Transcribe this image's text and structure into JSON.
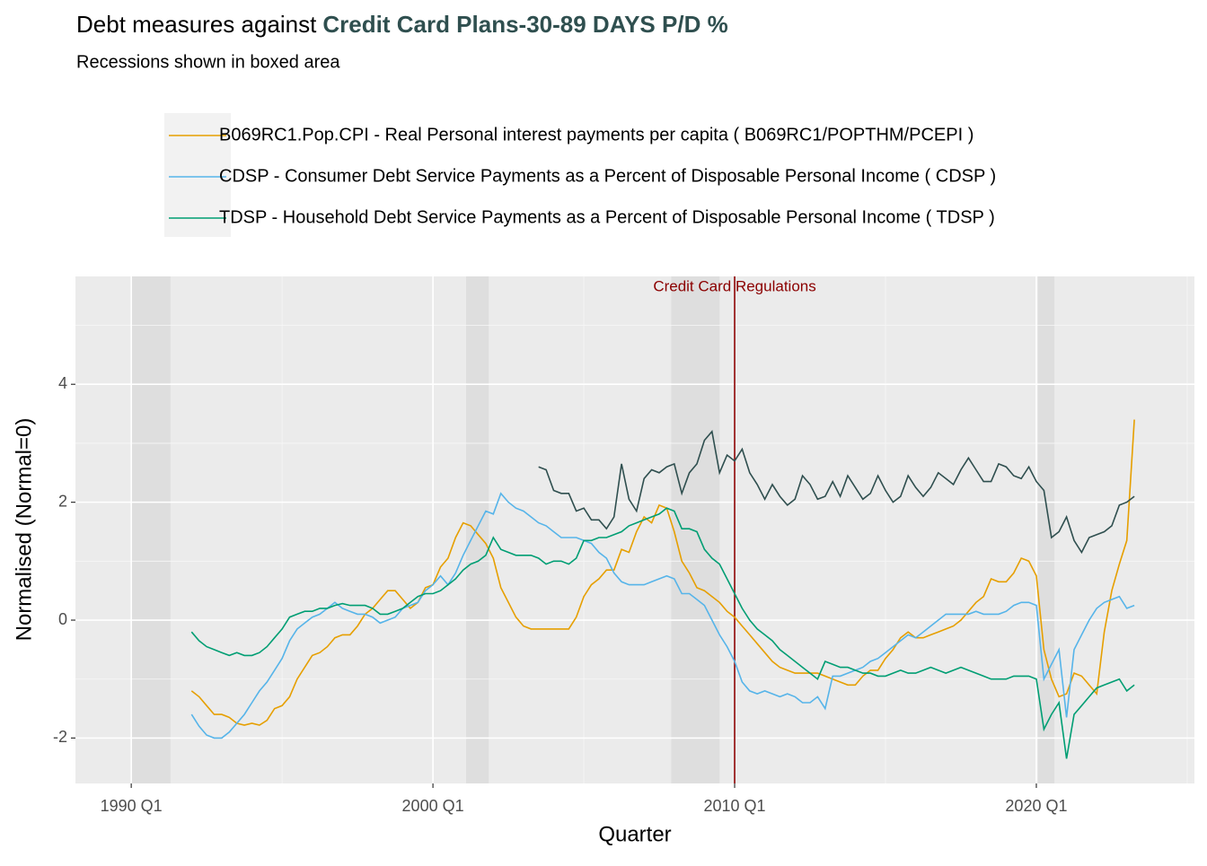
{
  "chart_data": {
    "type": "line",
    "title": "Debt measures against",
    "title_highlight": "Credit Card Plans-30-89 DAYS P/D %",
    "title_highlight_color": "#2F4F4F",
    "subtitle": "Recessions shown in boxed area",
    "xlabel": "Quarter",
    "ylabel": "Normalised (Normal=0)",
    "xlim": [
      1988.15,
      2025.24
    ],
    "ylim": [
      -2.77,
      5.83
    ],
    "xticks": [
      {
        "value": 1990,
        "label": "1990 Q1"
      },
      {
        "value": 2000,
        "label": "2000 Q1"
      },
      {
        "value": 2010,
        "label": "2010 Q1"
      },
      {
        "value": 2020,
        "label": "2020 Q1"
      }
    ],
    "yticks": [
      -2,
      0,
      2,
      4
    ],
    "x_minor": [
      1995,
      2005,
      2015,
      2025
    ],
    "y_minor": [
      -1,
      1,
      3,
      5
    ],
    "grid": true,
    "recessions": [
      [
        1990.0,
        1991.3
      ],
      [
        2001.1,
        2001.85
      ],
      [
        2007.9,
        2009.5
      ],
      [
        2020.05,
        2020.6
      ]
    ],
    "vline": 2010,
    "vline_label": "Credit Card Regulations",
    "vline_color": "#8B0000",
    "x": [
      1992,
      1992.25,
      1992.5,
      1992.75,
      1993,
      1993.25,
      1993.5,
      1993.75,
      1994,
      1994.25,
      1994.5,
      1994.75,
      1995,
      1995.25,
      1995.5,
      1995.75,
      1996,
      1996.25,
      1996.5,
      1996.75,
      1997,
      1997.25,
      1997.5,
      1997.75,
      1998,
      1998.25,
      1998.5,
      1998.75,
      1999,
      1999.25,
      1999.5,
      1999.75,
      2000,
      2000.25,
      2000.5,
      2000.75,
      2001,
      2001.25,
      2001.5,
      2001.75,
      2002,
      2002.25,
      2002.5,
      2002.75,
      2003,
      2003.25,
      2003.5,
      2003.75,
      2004,
      2004.25,
      2004.5,
      2004.75,
      2005,
      2005.25,
      2005.5,
      2005.75,
      2006,
      2006.25,
      2006.5,
      2006.75,
      2007,
      2007.25,
      2007.5,
      2007.75,
      2008,
      2008.25,
      2008.5,
      2008.75,
      2009,
      2009.25,
      2009.5,
      2009.75,
      2010,
      2010.25,
      2010.5,
      2010.75,
      2011,
      2011.25,
      2011.5,
      2011.75,
      2012,
      2012.25,
      2012.5,
      2012.75,
      2013,
      2013.25,
      2013.5,
      2013.75,
      2014,
      2014.25,
      2014.5,
      2014.75,
      2015,
      2015.25,
      2015.5,
      2015.75,
      2016,
      2016.25,
      2016.5,
      2016.75,
      2017,
      2017.25,
      2017.5,
      2017.75,
      2018,
      2018.25,
      2018.5,
      2018.75,
      2019,
      2019.25,
      2019.5,
      2019.75,
      2020,
      2020.25,
      2020.5,
      2020.75,
      2021,
      2021.25,
      2021.5,
      2021.75,
      2022,
      2022.25,
      2022.5,
      2022.75,
      2023,
      2023.25
    ],
    "series": [
      {
        "name": "B069RC1.Pop.CPI - Real Personal interest payments per capita ( B069RC1/POPTHM/PCEPI )",
        "color": "#E69F00",
        "values": [
          -1.2,
          -1.3,
          -1.45,
          -1.6,
          -1.6,
          -1.65,
          -1.75,
          -1.78,
          -1.75,
          -1.78,
          -1.7,
          -1.5,
          -1.45,
          -1.3,
          -1.0,
          -0.8,
          -0.6,
          -0.55,
          -0.45,
          -0.3,
          -0.25,
          -0.25,
          -0.1,
          0.1,
          0.2,
          0.35,
          0.5,
          0.5,
          0.35,
          0.2,
          0.3,
          0.55,
          0.6,
          0.9,
          1.05,
          1.4,
          1.65,
          1.6,
          1.45,
          1.3,
          1.05,
          0.55,
          0.3,
          0.05,
          -0.1,
          -0.15,
          -0.15,
          -0.15,
          -0.15,
          -0.15,
          -0.15,
          0.05,
          0.4,
          0.6,
          0.7,
          0.85,
          0.85,
          1.2,
          1.15,
          1.5,
          1.75,
          1.65,
          1.95,
          1.9,
          1.5,
          1.0,
          0.8,
          0.55,
          0.5,
          0.4,
          0.3,
          0.15,
          0.05,
          -0.1,
          -0.25,
          -0.4,
          -0.55,
          -0.7,
          -0.8,
          -0.85,
          -0.9,
          -0.9,
          -0.9,
          -0.9,
          -0.95,
          -1.0,
          -1.05,
          -1.1,
          -1.1,
          -0.95,
          -0.85,
          -0.85,
          -0.65,
          -0.5,
          -0.3,
          -0.2,
          -0.3,
          -0.3,
          -0.25,
          -0.2,
          -0.15,
          -0.1,
          0.0,
          0.15,
          0.3,
          0.4,
          0.7,
          0.65,
          0.65,
          0.8,
          1.05,
          1.0,
          0.75,
          -0.5,
          -1.0,
          -1.3,
          -1.25,
          -0.9,
          -0.95,
          -1.1,
          -1.25,
          -0.2,
          0.5,
          0.95,
          1.35,
          3.4
        ]
      },
      {
        "name": "CDSP - Consumer Debt Service Payments as a Percent of Disposable Personal Income ( CDSP )",
        "color": "#56B4E9",
        "values": [
          -1.6,
          -1.8,
          -1.95,
          -2.0,
          -2.0,
          -1.9,
          -1.75,
          -1.6,
          -1.4,
          -1.2,
          -1.05,
          -0.85,
          -0.65,
          -0.35,
          -0.15,
          -0.05,
          0.05,
          0.1,
          0.2,
          0.3,
          0.2,
          0.15,
          0.1,
          0.1,
          0.05,
          -0.05,
          0.0,
          0.05,
          0.2,
          0.25,
          0.3,
          0.5,
          0.6,
          0.75,
          0.6,
          0.8,
          1.1,
          1.35,
          1.6,
          1.85,
          1.8,
          2.15,
          2.0,
          1.9,
          1.85,
          1.75,
          1.65,
          1.6,
          1.5,
          1.4,
          1.4,
          1.4,
          1.35,
          1.3,
          1.15,
          1.05,
          0.8,
          0.65,
          0.6,
          0.6,
          0.6,
          0.65,
          0.7,
          0.75,
          0.7,
          0.45,
          0.45,
          0.35,
          0.25,
          0.0,
          -0.25,
          -0.45,
          -0.7,
          -1.05,
          -1.2,
          -1.25,
          -1.2,
          -1.25,
          -1.3,
          -1.25,
          -1.3,
          -1.4,
          -1.4,
          -1.3,
          -1.5,
          -0.95,
          -0.95,
          -0.9,
          -0.85,
          -0.8,
          -0.7,
          -0.65,
          -0.55,
          -0.45,
          -0.35,
          -0.25,
          -0.3,
          -0.2,
          -0.1,
          0.0,
          0.1,
          0.1,
          0.1,
          0.1,
          0.15,
          0.1,
          0.1,
          0.1,
          0.15,
          0.25,
          0.3,
          0.3,
          0.25,
          -1.0,
          -0.75,
          -0.5,
          -1.65,
          -0.5,
          -0.25,
          0.0,
          0.2,
          0.3,
          0.35,
          0.4,
          0.2,
          0.25
        ]
      },
      {
        "name": "TDSP - Household Debt Service Payments as a Percent of Disposable Personal Income ( TDSP )",
        "color": "#009E73",
        "values": [
          -0.2,
          -0.35,
          -0.45,
          -0.5,
          -0.55,
          -0.6,
          -0.55,
          -0.6,
          -0.6,
          -0.55,
          -0.45,
          -0.3,
          -0.15,
          0.05,
          0.1,
          0.15,
          0.15,
          0.2,
          0.2,
          0.25,
          0.28,
          0.25,
          0.25,
          0.25,
          0.2,
          0.1,
          0.1,
          0.15,
          0.2,
          0.3,
          0.4,
          0.45,
          0.45,
          0.5,
          0.6,
          0.7,
          0.85,
          0.95,
          1.0,
          1.1,
          1.4,
          1.2,
          1.15,
          1.1,
          1.1,
          1.1,
          1.05,
          0.95,
          1.0,
          1.0,
          0.95,
          1.05,
          1.35,
          1.35,
          1.4,
          1.4,
          1.45,
          1.5,
          1.6,
          1.65,
          1.7,
          1.75,
          1.8,
          1.9,
          1.85,
          1.55,
          1.55,
          1.5,
          1.2,
          1.05,
          0.95,
          0.7,
          0.45,
          0.2,
          0.0,
          -0.15,
          -0.25,
          -0.35,
          -0.5,
          -0.6,
          -0.7,
          -0.8,
          -0.9,
          -1.0,
          -0.7,
          -0.75,
          -0.8,
          -0.8,
          -0.85,
          -0.9,
          -0.9,
          -0.95,
          -0.95,
          -0.9,
          -0.85,
          -0.9,
          -0.9,
          -0.85,
          -0.8,
          -0.85,
          -0.9,
          -0.85,
          -0.8,
          -0.85,
          -0.9,
          -0.95,
          -1.0,
          -1.0,
          -1.0,
          -0.95,
          -0.95,
          -0.95,
          -1.0,
          -1.85,
          -1.6,
          -1.4,
          -2.35,
          -1.6,
          -1.45,
          -1.3,
          -1.15,
          -1.1,
          -1.05,
          -1.0,
          -1.2,
          -1.1
        ]
      },
      {
        "color": "#2F4F4F",
        "values": [
          null,
          null,
          null,
          null,
          null,
          null,
          null,
          null,
          null,
          null,
          null,
          null,
          null,
          null,
          null,
          null,
          null,
          null,
          null,
          null,
          null,
          null,
          null,
          null,
          null,
          null,
          null,
          null,
          null,
          null,
          null,
          null,
          null,
          null,
          null,
          null,
          null,
          null,
          null,
          null,
          null,
          null,
          null,
          null,
          null,
          null,
          2.6,
          2.55,
          2.2,
          2.15,
          2.15,
          1.85,
          1.9,
          1.7,
          1.7,
          1.55,
          1.75,
          2.65,
          2.05,
          1.85,
          2.4,
          2.55,
          2.5,
          2.6,
          2.65,
          2.15,
          2.5,
          2.65,
          3.05,
          3.2,
          2.5,
          2.8,
          2.7,
          2.9,
          2.5,
          2.3,
          2.05,
          2.3,
          2.1,
          1.95,
          2.05,
          2.45,
          2.3,
          2.05,
          2.1,
          2.35,
          2.1,
          2.45,
          2.25,
          2.05,
          2.15,
          2.45,
          2.2,
          2.0,
          2.1,
          2.45,
          2.25,
          2.1,
          2.25,
          2.5,
          2.4,
          2.3,
          2.55,
          2.75,
          2.55,
          2.35,
          2.35,
          2.65,
          2.6,
          2.45,
          2.4,
          2.6,
          2.35,
          2.2,
          1.4,
          1.5,
          1.75,
          1.35,
          1.15,
          1.4,
          1.45,
          1.5,
          1.6,
          1.95,
          2.0,
          2.1
        ]
      }
    ]
  }
}
